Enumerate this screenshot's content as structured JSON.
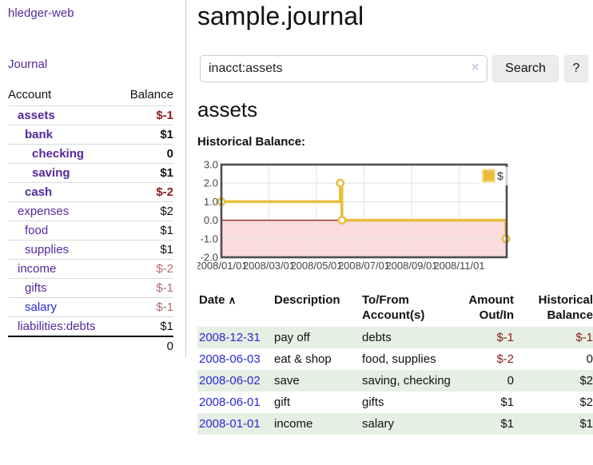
{
  "app": {
    "brand": "hledger-web",
    "nav_journal": "Journal"
  },
  "sidebar": {
    "columns": {
      "account": "Account",
      "balance": "Balance"
    },
    "accounts": [
      {
        "name": "assets",
        "indent": 1,
        "bold": true,
        "balance": "$-1",
        "balance_style": "neg-strong"
      },
      {
        "name": "bank",
        "indent": 2,
        "bold": true,
        "balance": "$1",
        "balance_style": "pos-strong"
      },
      {
        "name": "checking",
        "indent": 3,
        "bold": true,
        "balance": "0",
        "balance_style": "pos-strong"
      },
      {
        "name": "saving",
        "indent": 3,
        "bold": true,
        "balance": "$1",
        "balance_style": "pos-strong"
      },
      {
        "name": "cash",
        "indent": 2,
        "bold": true,
        "balance": "$-2",
        "balance_style": "neg-strong"
      },
      {
        "name": "expenses",
        "indent": 1,
        "bold": false,
        "balance": "$2",
        "balance_style": "pos"
      },
      {
        "name": "food",
        "indent": 2,
        "bold": false,
        "balance": "$1",
        "balance_style": "pos"
      },
      {
        "name": "supplies",
        "indent": 2,
        "bold": false,
        "balance": "$1",
        "balance_style": "pos"
      },
      {
        "name": "income",
        "indent": 1,
        "bold": false,
        "balance": "$-2",
        "balance_style": "neg-muted"
      },
      {
        "name": "gifts",
        "indent": 2,
        "bold": false,
        "balance": "$-1",
        "balance_style": "neg-muted"
      },
      {
        "name": "salary",
        "indent": 2,
        "bold": false,
        "link_color": "blue",
        "balance": "$-1",
        "balance_style": "neg-muted"
      },
      {
        "name": "liabilities:debts",
        "indent": 1,
        "bold": false,
        "balance": "$1",
        "balance_style": "pos"
      }
    ],
    "total": "0"
  },
  "header": {
    "title": "sample.journal"
  },
  "search": {
    "value": "inacct:assets",
    "clear_icon": "×",
    "button_label": "Search",
    "help_label": "?"
  },
  "account_page": {
    "heading": "assets",
    "chart_label": "Historical Balance:"
  },
  "chart_data": {
    "type": "line",
    "step": true,
    "title": "Historical Balance",
    "series": [
      {
        "name": "$",
        "color": "#e9bd3f",
        "marker_border": "#e9bd3f",
        "points": [
          {
            "date": "2008-01-01",
            "x_months": 0,
            "y": 1
          },
          {
            "date": "2008-06-01",
            "x_months": 5.0,
            "y": 2
          },
          {
            "date": "2008-06-03",
            "x_months": 5.07,
            "y": 0
          },
          {
            "date": "2008-12-31",
            "x_months": 11.97,
            "y": -1
          }
        ]
      }
    ],
    "x_ticks": [
      {
        "label": "2008/01/01",
        "m": 0
      },
      {
        "label": "2008/03/01",
        "m": 2
      },
      {
        "label": "2008/05/01",
        "m": 4
      },
      {
        "label": "2008/07/01",
        "m": 6
      },
      {
        "label": "2008/09/01",
        "m": 8
      },
      {
        "label": "2008/11/01",
        "m": 10
      }
    ],
    "y_ticks": [
      {
        "label": "3.0",
        "v": 3
      },
      {
        "label": "2.0",
        "v": 2
      },
      {
        "label": "1.0",
        "v": 1
      },
      {
        "label": "0.0",
        "v": 0
      },
      {
        "label": "-1.0",
        "v": -1
      },
      {
        "label": "-2.0",
        "v": -2
      }
    ],
    "ylim": [
      -2,
      3
    ],
    "xlim_months": [
      0,
      12
    ],
    "grid": true,
    "legend": {
      "label": "$",
      "position": "top-right"
    },
    "negative_region_fill": "#fbdcdc",
    "zero_line_color": "#8c1717",
    "frame_color": "#4d4d4d",
    "grid_color": "#e3e3e3",
    "tick_color": "#444444"
  },
  "register": {
    "sort_icon": "∧",
    "columns": [
      {
        "label": "Date",
        "align": "left",
        "sort": true,
        "key": "date"
      },
      {
        "label": "Description",
        "align": "left",
        "sort": false,
        "key": "description"
      },
      {
        "label": "To/From Account(s)",
        "align": "left",
        "sort": false,
        "key": "accounts"
      },
      {
        "label": "Amount Out/In",
        "align": "right",
        "sort": false,
        "key": "amount"
      },
      {
        "label": "Historical Balance",
        "align": "right",
        "sort": false,
        "key": "balance"
      }
    ],
    "rows": [
      {
        "date": "2008-12-31",
        "description": "pay off",
        "accounts": "debts",
        "amount": "$-1",
        "amount_neg": true,
        "balance": "$-1",
        "balance_neg": true,
        "shaded": true
      },
      {
        "date": "2008-06-03",
        "description": "eat & shop",
        "accounts": "food, supplies",
        "amount": "$-2",
        "amount_neg": true,
        "balance": "0",
        "balance_neg": false,
        "shaded": false
      },
      {
        "date": "2008-06-02",
        "description": "save",
        "accounts": "saving, checking",
        "amount": "0",
        "amount_neg": false,
        "balance": "$2",
        "balance_neg": false,
        "shaded": true
      },
      {
        "date": "2008-06-01",
        "description": "gift",
        "accounts": "gifts",
        "amount": "$1",
        "amount_neg": false,
        "balance": "$2",
        "balance_neg": false,
        "shaded": false
      },
      {
        "date": "2008-01-01",
        "description": "income",
        "accounts": "salary",
        "amount": "$1",
        "amount_neg": false,
        "balance": "$1",
        "balance_neg": false,
        "shaded": true
      }
    ]
  }
}
